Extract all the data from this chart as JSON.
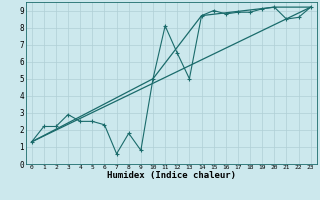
{
  "xlabel": "Humidex (Indice chaleur)",
  "ylabel": "",
  "background_color": "#cce8ed",
  "grid_color": "#b0cfd5",
  "line_color": "#1a6b6b",
  "xlim": [
    -0.5,
    23.5
  ],
  "ylim": [
    0,
    9.5
  ],
  "xticks": [
    0,
    1,
    2,
    3,
    4,
    5,
    6,
    7,
    8,
    9,
    10,
    11,
    12,
    13,
    14,
    15,
    16,
    17,
    18,
    19,
    20,
    21,
    22,
    23
  ],
  "yticks": [
    0,
    1,
    2,
    3,
    4,
    5,
    6,
    7,
    8,
    9
  ],
  "series1_x": [
    0,
    1,
    2,
    3,
    4,
    5,
    6,
    7,
    8,
    9,
    10,
    11,
    12,
    13,
    14,
    15,
    16,
    17,
    18,
    19,
    20,
    21,
    22,
    23
  ],
  "series1_y": [
    1.3,
    2.2,
    2.2,
    2.9,
    2.5,
    2.5,
    2.3,
    0.6,
    1.8,
    0.8,
    5.0,
    8.1,
    6.5,
    5.0,
    8.7,
    9.0,
    8.8,
    8.9,
    8.9,
    9.1,
    9.2,
    8.5,
    8.6,
    9.2
  ],
  "series2_x": [
    0,
    23
  ],
  "series2_y": [
    1.3,
    9.2
  ],
  "series3_x": [
    0,
    10,
    14,
    20,
    23
  ],
  "series3_y": [
    1.3,
    5.0,
    8.7,
    9.2,
    9.2
  ]
}
